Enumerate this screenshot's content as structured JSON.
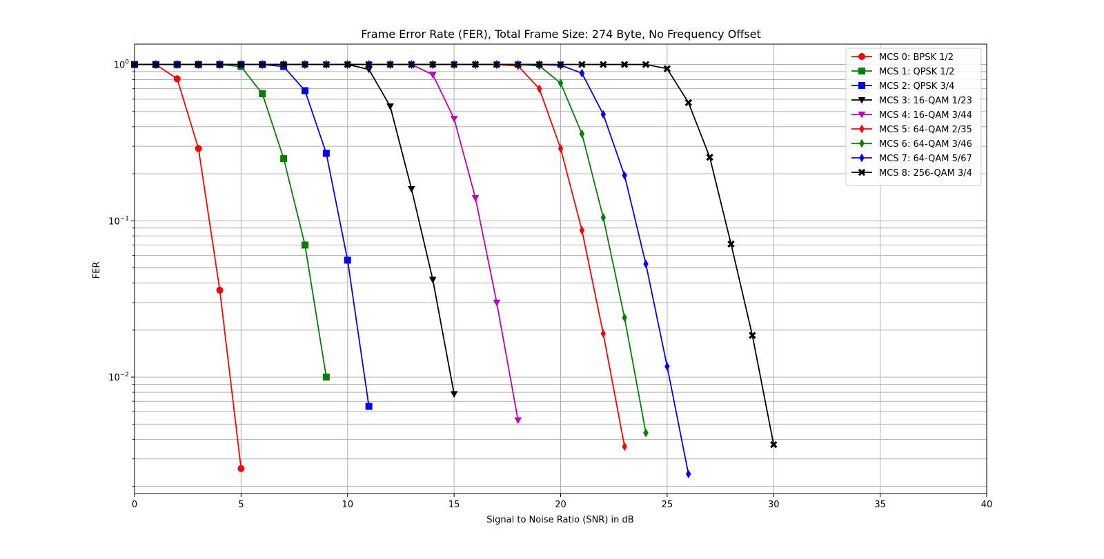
{
  "chart_data": {
    "type": "line",
    "title": "Frame Error Rate (FER), Total Frame Size: 274 Byte, No Frequency Offset",
    "xlabel": "Signal to Noise Ratio (SNR) in dB",
    "ylabel": "FER",
    "xlim": [
      0,
      40
    ],
    "xticks": [
      0,
      5,
      10,
      15,
      20,
      25,
      30,
      35,
      40
    ],
    "yscale": "log",
    "ylim": [
      0.0018,
      1.35
    ],
    "yticks": [
      {
        "value": 1,
        "base": "10",
        "exp": "0"
      },
      {
        "value": 0.1,
        "base": "10",
        "exp": "−1"
      },
      {
        "value": 0.01,
        "base": "10",
        "exp": "−2"
      }
    ],
    "grid": true,
    "legend_position": "top-right",
    "series": [
      {
        "name": "MCS 0: BPSK 1/2",
        "color": "#ff0000",
        "marker": "circle",
        "x": [
          0,
          1,
          2,
          3,
          4,
          5
        ],
        "y": [
          1.0,
          1.0,
          0.81,
          0.29,
          0.036,
          0.0026
        ]
      },
      {
        "name": "MCS 1: QPSK 1/2",
        "color": "#008000",
        "marker": "square",
        "x": [
          0,
          1,
          2,
          3,
          4,
          5,
          6,
          7,
          8,
          9
        ],
        "y": [
          1.0,
          1.0,
          1.0,
          1.0,
          1.0,
          0.97,
          0.65,
          0.25,
          0.07,
          0.01
        ]
      },
      {
        "name": "MCS 2: QPSK 3/4",
        "color": "#0000ff",
        "marker": "square",
        "x": [
          0,
          1,
          2,
          3,
          4,
          5,
          6,
          7,
          8,
          9,
          10,
          11
        ],
        "y": [
          1.0,
          1.0,
          1.0,
          1.0,
          1.0,
          1.0,
          1.0,
          0.97,
          0.68,
          0.27,
          0.056,
          0.0065
        ]
      },
      {
        "name": "MCS 3: 16-QAM 1/23",
        "color": "#000000",
        "marker": "triangle-down",
        "x": [
          0,
          1,
          2,
          3,
          4,
          5,
          6,
          7,
          8,
          9,
          10,
          11,
          12,
          13,
          14,
          15
        ],
        "y": [
          1.0,
          1.0,
          1.0,
          1.0,
          1.0,
          1.0,
          1.0,
          1.0,
          1.0,
          1.0,
          1.0,
          0.93,
          0.54,
          0.16,
          0.042,
          0.0078
        ]
      },
      {
        "name": "MCS 4: 16-QAM 3/44",
        "color": "#bf00bf",
        "marker": "triangle-down",
        "x": [
          0,
          1,
          2,
          3,
          4,
          5,
          6,
          7,
          8,
          9,
          10,
          11,
          12,
          13,
          14,
          15,
          16,
          17,
          18
        ],
        "y": [
          1.0,
          1.0,
          1.0,
          1.0,
          1.0,
          1.0,
          1.0,
          1.0,
          1.0,
          1.0,
          1.0,
          1.0,
          1.0,
          1.0,
          0.86,
          0.45,
          0.14,
          0.03,
          0.0053
        ]
      },
      {
        "name": "MCS 5: 64-QAM 2/35",
        "color": "#ff0000",
        "marker": "diamond",
        "x": [
          0,
          1,
          2,
          3,
          4,
          5,
          6,
          7,
          8,
          9,
          10,
          11,
          12,
          13,
          14,
          15,
          16,
          17,
          18,
          19,
          20,
          21,
          22,
          23
        ],
        "y": [
          1.0,
          1.0,
          1.0,
          1.0,
          1.0,
          1.0,
          1.0,
          1.0,
          1.0,
          1.0,
          1.0,
          1.0,
          1.0,
          1.0,
          1.0,
          1.0,
          1.0,
          1.0,
          0.98,
          0.7,
          0.29,
          0.087,
          0.019,
          0.0036
        ]
      },
      {
        "name": "MCS 6: 64-QAM 3/46",
        "color": "#008000",
        "marker": "diamond",
        "x": [
          0,
          1,
          2,
          3,
          4,
          5,
          6,
          7,
          8,
          9,
          10,
          11,
          12,
          13,
          14,
          15,
          16,
          17,
          18,
          19,
          20,
          21,
          22,
          23,
          24
        ],
        "y": [
          1.0,
          1.0,
          1.0,
          1.0,
          1.0,
          1.0,
          1.0,
          1.0,
          1.0,
          1.0,
          1.0,
          1.0,
          1.0,
          1.0,
          1.0,
          1.0,
          1.0,
          1.0,
          1.0,
          0.98,
          0.76,
          0.36,
          0.105,
          0.024,
          0.0044
        ]
      },
      {
        "name": "MCS 7: 64-QAM 5/67",
        "color": "#0000ff",
        "marker": "diamond",
        "x": [
          0,
          1,
          2,
          3,
          4,
          5,
          6,
          7,
          8,
          9,
          10,
          11,
          12,
          13,
          14,
          15,
          16,
          17,
          18,
          19,
          20,
          21,
          22,
          23,
          24,
          25,
          26
        ],
        "y": [
          1.0,
          1.0,
          1.0,
          1.0,
          1.0,
          1.0,
          1.0,
          1.0,
          1.0,
          1.0,
          1.0,
          1.0,
          1.0,
          1.0,
          1.0,
          1.0,
          1.0,
          1.0,
          1.0,
          1.0,
          0.99,
          0.88,
          0.48,
          0.195,
          0.053,
          0.0117,
          0.0024
        ]
      },
      {
        "name": "MCS 8: 256-QAM 3/4",
        "color": "#000000",
        "marker": "x-filled",
        "x": [
          0,
          1,
          2,
          3,
          4,
          5,
          6,
          7,
          8,
          9,
          10,
          11,
          12,
          13,
          14,
          15,
          16,
          17,
          18,
          19,
          20,
          21,
          22,
          23,
          24,
          25,
          26,
          27,
          28,
          29,
          30
        ],
        "y": [
          1.0,
          1.0,
          1.0,
          1.0,
          1.0,
          1.0,
          1.0,
          1.0,
          1.0,
          1.0,
          1.0,
          1.0,
          1.0,
          1.0,
          1.0,
          1.0,
          1.0,
          1.0,
          1.0,
          1.0,
          1.0,
          1.0,
          1.0,
          1.0,
          1.0,
          0.94,
          0.57,
          0.255,
          0.071,
          0.0185,
          0.0037
        ]
      }
    ]
  }
}
